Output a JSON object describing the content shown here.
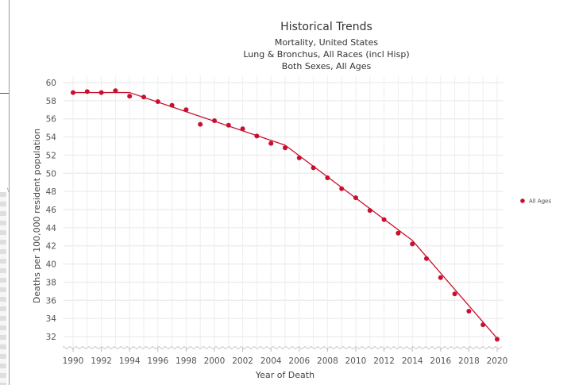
{
  "chart_data": {
    "type": "scatter",
    "title": "Historical Trends",
    "subtitle": [
      "Mortality, United States",
      "Lung & Bronchus, All Races (incl Hisp)",
      "Both Sexes, All Ages"
    ],
    "xlabel": "Year of Death",
    "ylabel": "Deaths per 100,000 resident population",
    "xlim": [
      1990,
      2020
    ],
    "ylim": [
      30,
      60
    ],
    "x_ticks": [
      1990,
      1992,
      1994,
      1996,
      1998,
      2000,
      2002,
      2004,
      2006,
      2008,
      2010,
      2012,
      2014,
      2016,
      2018,
      2020
    ],
    "y_ticks": [
      32,
      34,
      36,
      38,
      40,
      42,
      44,
      46,
      48,
      50,
      52,
      54,
      56,
      58,
      60
    ],
    "grid": true,
    "legend_position": "right",
    "series": [
      {
        "name": "All Ages",
        "color": "#c8102e",
        "x": [
          1990,
          1991,
          1992,
          1993,
          1994,
          1995,
          1996,
          1997,
          1998,
          1999,
          2000,
          2001,
          2002,
          2003,
          2004,
          2005,
          2006,
          2007,
          2008,
          2009,
          2010,
          2011,
          2012,
          2013,
          2014,
          2015,
          2016,
          2017,
          2018,
          2019,
          2020
        ],
        "values": [
          58.9,
          59.0,
          58.9,
          59.1,
          58.5,
          58.4,
          57.9,
          57.5,
          57.0,
          55.4,
          55.8,
          55.3,
          54.9,
          54.1,
          53.3,
          52.8,
          51.7,
          50.6,
          49.5,
          48.3,
          47.3,
          45.9,
          44.9,
          43.4,
          42.2,
          40.6,
          38.5,
          36.7,
          34.8,
          33.3,
          31.7
        ]
      }
    ],
    "trend": {
      "color": "#c8102e",
      "x": [
        1990,
        1994,
        2005,
        2014,
        2020
      ],
      "values": [
        58.9,
        58.9,
        53.1,
        42.6,
        31.8
      ]
    }
  }
}
